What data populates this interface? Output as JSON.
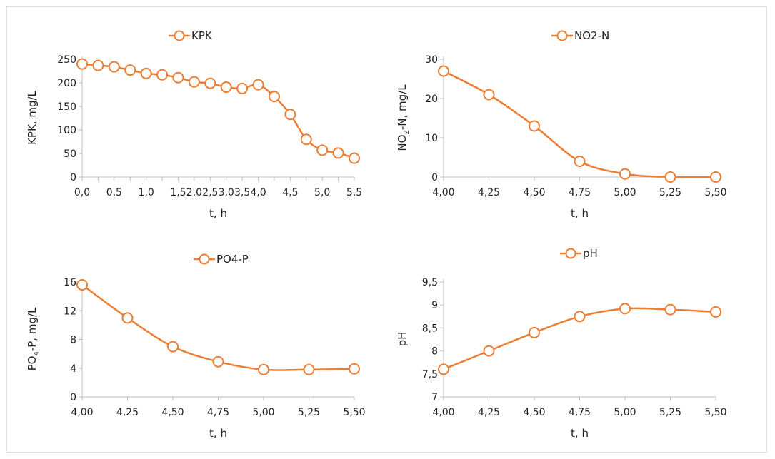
{
  "colors": {
    "series": "#ec7d33",
    "axis": "#bfbfbf",
    "text": "#222222"
  },
  "chart_data": [
    {
      "type": "line",
      "legend": "KPK",
      "legend_position": "top",
      "xlabel": "t, h",
      "ylabel_parts": [
        "KPK, mg/L"
      ],
      "x": [
        0,
        0.25,
        0.5,
        0.75,
        1.0,
        1.25,
        1.5,
        2.0,
        2.5,
        3.0,
        3.5,
        4.0,
        4.25,
        4.5,
        4.75,
        5.0,
        5.25,
        5.5
      ],
      "y": [
        240,
        237,
        234,
        227,
        220,
        217,
        211,
        202,
        199,
        191,
        188,
        196,
        171,
        133,
        80,
        57,
        51,
        40
      ],
      "xlim": [
        0,
        5.5
      ],
      "ylim": [
        0,
        250
      ],
      "x_categorical": true,
      "xtick_values": [
        0,
        0.5,
        1.0,
        1.5,
        2.0,
        2.5,
        3.0,
        3.5,
        4.0,
        4.5,
        5.0,
        5.5
      ],
      "xtick_labels": [
        "0,0",
        "0,5",
        "1,0",
        "1,5",
        "2,0",
        "2,5",
        "3,0",
        "3,5",
        "4,0",
        "4,5",
        "5,0",
        "5,5"
      ],
      "ytick_values": [
        0,
        50,
        100,
        150,
        200,
        250
      ],
      "ytick_labels": [
        "0",
        "50",
        "100",
        "150",
        "200",
        "250"
      ],
      "grid": false
    },
    {
      "type": "line",
      "legend": "NO2-N",
      "legend_position": "top",
      "xlabel": "t, h",
      "ylabel_parts": [
        "NO",
        "2",
        "-N, mg/L"
      ],
      "x": [
        4.0,
        4.25,
        4.5,
        4.75,
        5.0,
        5.25,
        5.5
      ],
      "y": [
        27,
        21,
        13,
        4,
        0.8,
        0,
        0
      ],
      "xlim": [
        4.0,
        5.5
      ],
      "ylim": [
        0,
        30
      ],
      "x_categorical": false,
      "xtick_values": [
        4.0,
        4.25,
        4.5,
        4.75,
        5.0,
        5.25,
        5.5
      ],
      "xtick_labels": [
        "4,00",
        "4,25",
        "4,50",
        "4,75",
        "5,00",
        "5,25",
        "5,50"
      ],
      "ytick_values": [
        0,
        10,
        20,
        30
      ],
      "ytick_labels": [
        "0",
        "10",
        "20",
        "30"
      ],
      "grid": false
    },
    {
      "type": "line",
      "legend": "PO4-P",
      "legend_position": "top",
      "xlabel": "t, h",
      "ylabel_parts": [
        "PO",
        "4",
        "-P, mg/L"
      ],
      "x": [
        4.0,
        4.25,
        4.5,
        4.75,
        5.0,
        5.25,
        5.5
      ],
      "y": [
        15.6,
        11.0,
        7.0,
        4.9,
        3.8,
        3.8,
        3.9
      ],
      "xlim": [
        4.0,
        5.5
      ],
      "ylim": [
        0,
        16
      ],
      "x_categorical": false,
      "xtick_values": [
        4.0,
        4.25,
        4.5,
        4.75,
        5.0,
        5.25,
        5.5
      ],
      "xtick_labels": [
        "4,00",
        "4,25",
        "4,50",
        "4,75",
        "5,00",
        "5,25",
        "5,50"
      ],
      "ytick_values": [
        0,
        4,
        8,
        12,
        16
      ],
      "ytick_labels": [
        "0",
        "4",
        "8",
        "12",
        "16"
      ],
      "grid": false
    },
    {
      "type": "line",
      "legend": "pH",
      "legend_position": "top",
      "xlabel": "t, h",
      "ylabel_parts": [
        "pH"
      ],
      "x": [
        4.0,
        4.25,
        4.5,
        4.75,
        5.0,
        5.25,
        5.5
      ],
      "y": [
        7.6,
        8.0,
        8.4,
        8.75,
        8.92,
        8.9,
        8.85
      ],
      "xlim": [
        4.0,
        5.5
      ],
      "ylim": [
        7,
        9.5
      ],
      "x_categorical": false,
      "xtick_values": [
        4.0,
        4.25,
        4.5,
        4.75,
        5.0,
        5.25,
        5.5
      ],
      "xtick_labels": [
        "4,00",
        "4,25",
        "4,50",
        "4,75",
        "5,00",
        "5,25",
        "5,50"
      ],
      "ytick_values": [
        7,
        7.5,
        8,
        8.5,
        9,
        9.5
      ],
      "ytick_labels": [
        "7",
        "7,5",
        "8",
        "8,5",
        "9",
        "9,5"
      ],
      "grid": false
    }
  ]
}
